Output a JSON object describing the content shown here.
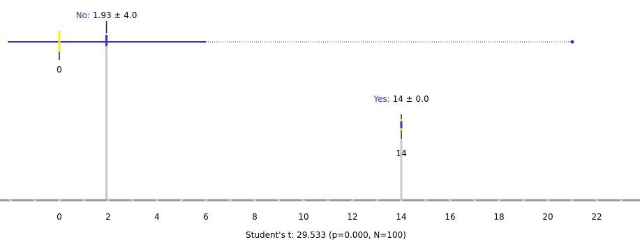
{
  "chart_data": {
    "type": "box",
    "title": "",
    "xlabel": "",
    "ylabel": "",
    "xlim": [
      -2.1,
      23.4
    ],
    "ticks": [
      0,
      2,
      4,
      6,
      8,
      10,
      12,
      14,
      16,
      18,
      20,
      22
    ],
    "tick_labels": [
      "0",
      "2",
      "4",
      "6",
      "8",
      "10",
      "12",
      "14",
      "16",
      "18",
      "20",
      "22"
    ],
    "groups": [
      {
        "name": "No",
        "label_value": "1.93 ± 4.0",
        "mean": 1.93,
        "sd": 4.0,
        "median": 0,
        "median_label": "0",
        "q1": 0,
        "q3": 0,
        "whisker_low": -2.1,
        "whisker_high": 6,
        "max": 21
      },
      {
        "name": "Yes",
        "label_value": "14 ± 0.0",
        "mean": 14,
        "sd": 0.0,
        "median": 14,
        "median_label": "14",
        "q1": 14,
        "q3": 14,
        "whisker_low": 14,
        "whisker_high": 14,
        "max": 14
      }
    ],
    "footer": "Student's t: 29.533 (p=0.000, N=100)"
  },
  "colors": {
    "group_name": "#3333cc",
    "box": "#3b2bd6",
    "median": "#ffee00",
    "axis": "#999999",
    "mean_line": "#c8c8c8",
    "text": "#000000"
  }
}
